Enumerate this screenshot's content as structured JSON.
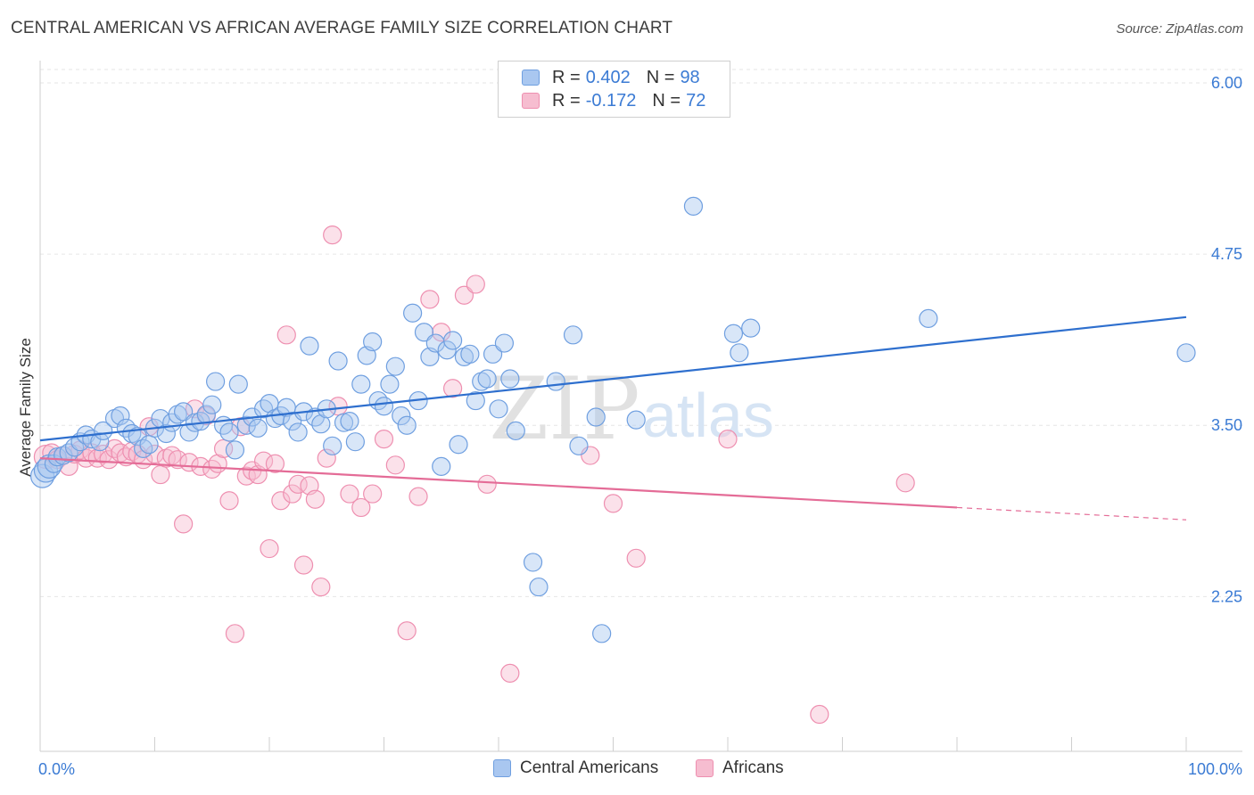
{
  "title": "CENTRAL AMERICAN VS AFRICAN AVERAGE FAMILY SIZE CORRELATION CHART",
  "source": "Source: ZipAtlas.com",
  "watermark": {
    "zip": "ZIP",
    "atlas": "atlas"
  },
  "legend": {
    "r_label": "R =",
    "n_label": "N =",
    "series": [
      {
        "r": "0.402",
        "n": "98"
      },
      {
        "r": "-0.172",
        "n": "72"
      }
    ]
  },
  "chart_data": {
    "type": "scatter",
    "ylabel": "Average Family Size",
    "xlim": [
      0,
      100
    ],
    "ylim": [
      1.0,
      6.25
    ],
    "x_tick_labels": [
      "0.0%",
      "100.0%"
    ],
    "y_ticks": [
      {
        "value": 6.0,
        "label": "6.00"
      },
      {
        "value": 4.75,
        "label": "4.75"
      },
      {
        "value": 3.5,
        "label": "3.50"
      },
      {
        "value": 2.25,
        "label": "2.25"
      }
    ],
    "colors": {
      "central_fill": "#a9c7f0",
      "central_stroke": "#6f9fe0",
      "central_line": "#2e6fce",
      "african_fill": "#f6bdd0",
      "african_stroke": "#ee8fb0",
      "african_line": "#e46c97",
      "axis_label": "#3b7bd4"
    },
    "series": [
      {
        "name": "Central Americans",
        "trend": {
          "x": [
            0,
            100
          ],
          "y": [
            3.39,
            4.29
          ]
        },
        "points": [
          [
            0.2,
            3.13
          ],
          [
            0.5,
            3.17
          ],
          [
            0.8,
            3.2
          ],
          [
            1.2,
            3.22
          ],
          [
            1.5,
            3.27
          ],
          [
            2.0,
            3.28
          ],
          [
            2.5,
            3.3
          ],
          [
            3.0,
            3.34
          ],
          [
            3.5,
            3.38
          ],
          [
            4.0,
            3.43
          ],
          [
            4.5,
            3.4
          ],
          [
            5.2,
            3.38
          ],
          [
            5.5,
            3.46
          ],
          [
            6.5,
            3.55
          ],
          [
            7.0,
            3.57
          ],
          [
            7.5,
            3.48
          ],
          [
            8.0,
            3.44
          ],
          [
            8.5,
            3.42
          ],
          [
            9.0,
            3.33
          ],
          [
            9.5,
            3.36
          ],
          [
            10.0,
            3.48
          ],
          [
            10.5,
            3.55
          ],
          [
            11.0,
            3.44
          ],
          [
            11.5,
            3.52
          ],
          [
            12.0,
            3.58
          ],
          [
            12.5,
            3.6
          ],
          [
            13.0,
            3.45
          ],
          [
            13.5,
            3.52
          ],
          [
            14.0,
            3.53
          ],
          [
            14.5,
            3.58
          ],
          [
            15.0,
            3.65
          ],
          [
            15.3,
            3.82
          ],
          [
            16.0,
            3.5
          ],
          [
            16.5,
            3.45
          ],
          [
            17.0,
            3.32
          ],
          [
            17.3,
            3.8
          ],
          [
            18.0,
            3.5
          ],
          [
            18.5,
            3.56
          ],
          [
            19.0,
            3.48
          ],
          [
            19.5,
            3.62
          ],
          [
            20.0,
            3.66
          ],
          [
            20.5,
            3.55
          ],
          [
            21.0,
            3.57
          ],
          [
            21.5,
            3.63
          ],
          [
            22.0,
            3.53
          ],
          [
            22.5,
            3.45
          ],
          [
            23.0,
            3.6
          ],
          [
            23.5,
            4.08
          ],
          [
            24.0,
            3.56
          ],
          [
            24.5,
            3.51
          ],
          [
            25.0,
            3.62
          ],
          [
            25.5,
            3.35
          ],
          [
            26.0,
            3.97
          ],
          [
            26.5,
            3.52
          ],
          [
            27.0,
            3.53
          ],
          [
            27.5,
            3.38
          ],
          [
            28.0,
            3.8
          ],
          [
            28.5,
            4.01
          ],
          [
            29.0,
            4.11
          ],
          [
            29.5,
            3.68
          ],
          [
            30.0,
            3.64
          ],
          [
            30.5,
            3.8
          ],
          [
            31.0,
            3.93
          ],
          [
            31.5,
            3.57
          ],
          [
            32.0,
            3.5
          ],
          [
            32.5,
            4.32
          ],
          [
            33.0,
            3.68
          ],
          [
            33.5,
            4.18
          ],
          [
            34.0,
            4.0
          ],
          [
            34.5,
            4.1
          ],
          [
            35.0,
            3.2
          ],
          [
            35.5,
            4.05
          ],
          [
            36.0,
            4.12
          ],
          [
            36.5,
            3.36
          ],
          [
            37.0,
            4.0
          ],
          [
            37.5,
            4.02
          ],
          [
            38.0,
            3.68
          ],
          [
            38.5,
            3.82
          ],
          [
            39.0,
            3.84
          ],
          [
            39.5,
            4.02
          ],
          [
            40.0,
            3.62
          ],
          [
            40.5,
            4.1
          ],
          [
            41.0,
            3.84
          ],
          [
            41.5,
            3.46
          ],
          [
            43.0,
            2.5
          ],
          [
            43.5,
            2.32
          ],
          [
            45.0,
            3.82
          ],
          [
            46.5,
            4.16
          ],
          [
            47.0,
            3.35
          ],
          [
            48.5,
            3.56
          ],
          [
            49.0,
            1.98
          ],
          [
            52.0,
            3.54
          ],
          [
            57.0,
            5.1
          ],
          [
            60.5,
            4.17
          ],
          [
            61.0,
            4.03
          ],
          [
            62.0,
            4.21
          ],
          [
            77.5,
            4.28
          ],
          [
            100.0,
            4.03
          ]
        ]
      },
      {
        "name": "Africans",
        "trend": {
          "x": [
            0,
            80
          ],
          "y": [
            3.26,
            2.9
          ]
        },
        "trend_extension": {
          "x": [
            80,
            100
          ],
          "y": [
            2.9,
            2.81
          ]
        },
        "points": [
          [
            0.5,
            3.27
          ],
          [
            1.0,
            3.3
          ],
          [
            1.5,
            3.25
          ],
          [
            2.0,
            3.28
          ],
          [
            2.5,
            3.2
          ],
          [
            3.0,
            3.29
          ],
          [
            3.5,
            3.32
          ],
          [
            4.0,
            3.26
          ],
          [
            4.5,
            3.3
          ],
          [
            5.0,
            3.26
          ],
          [
            5.5,
            3.29
          ],
          [
            6.0,
            3.25
          ],
          [
            6.5,
            3.33
          ],
          [
            7.0,
            3.3
          ],
          [
            7.5,
            3.27
          ],
          [
            8.0,
            3.31
          ],
          [
            8.5,
            3.29
          ],
          [
            9.0,
            3.25
          ],
          [
            9.5,
            3.49
          ],
          [
            10.0,
            3.29
          ],
          [
            10.5,
            3.14
          ],
          [
            11.0,
            3.26
          ],
          [
            11.5,
            3.28
          ],
          [
            12.0,
            3.25
          ],
          [
            12.5,
            2.78
          ],
          [
            13.0,
            3.23
          ],
          [
            13.5,
            3.62
          ],
          [
            14.0,
            3.2
          ],
          [
            14.5,
            3.57
          ],
          [
            15.0,
            3.18
          ],
          [
            15.5,
            3.22
          ],
          [
            16.0,
            3.33
          ],
          [
            16.5,
            2.95
          ],
          [
            17.0,
            1.98
          ],
          [
            17.5,
            3.49
          ],
          [
            18.0,
            3.13
          ],
          [
            18.5,
            3.17
          ],
          [
            19.0,
            3.14
          ],
          [
            19.5,
            3.24
          ],
          [
            20.0,
            2.6
          ],
          [
            20.5,
            3.22
          ],
          [
            21.0,
            2.95
          ],
          [
            21.5,
            4.16
          ],
          [
            22.0,
            3.0
          ],
          [
            22.5,
            3.07
          ],
          [
            23.0,
            2.48
          ],
          [
            23.5,
            3.06
          ],
          [
            24.0,
            2.96
          ],
          [
            24.5,
            2.32
          ],
          [
            25.0,
            3.26
          ],
          [
            25.5,
            4.89
          ],
          [
            26.0,
            3.64
          ],
          [
            27.0,
            3.0
          ],
          [
            28.0,
            2.9
          ],
          [
            29.0,
            3.0
          ],
          [
            30.0,
            3.4
          ],
          [
            31.0,
            3.21
          ],
          [
            32.0,
            2.0
          ],
          [
            33.0,
            2.98
          ],
          [
            34.0,
            4.42
          ],
          [
            35.0,
            4.18
          ],
          [
            36.0,
            3.77
          ],
          [
            37.0,
            4.45
          ],
          [
            38.0,
            4.53
          ],
          [
            39.0,
            3.07
          ],
          [
            41.0,
            1.69
          ],
          [
            48.0,
            3.28
          ],
          [
            50.0,
            2.93
          ],
          [
            52.0,
            2.53
          ],
          [
            60.0,
            3.4
          ],
          [
            68.0,
            1.39
          ],
          [
            75.5,
            3.08
          ]
        ]
      }
    ]
  }
}
